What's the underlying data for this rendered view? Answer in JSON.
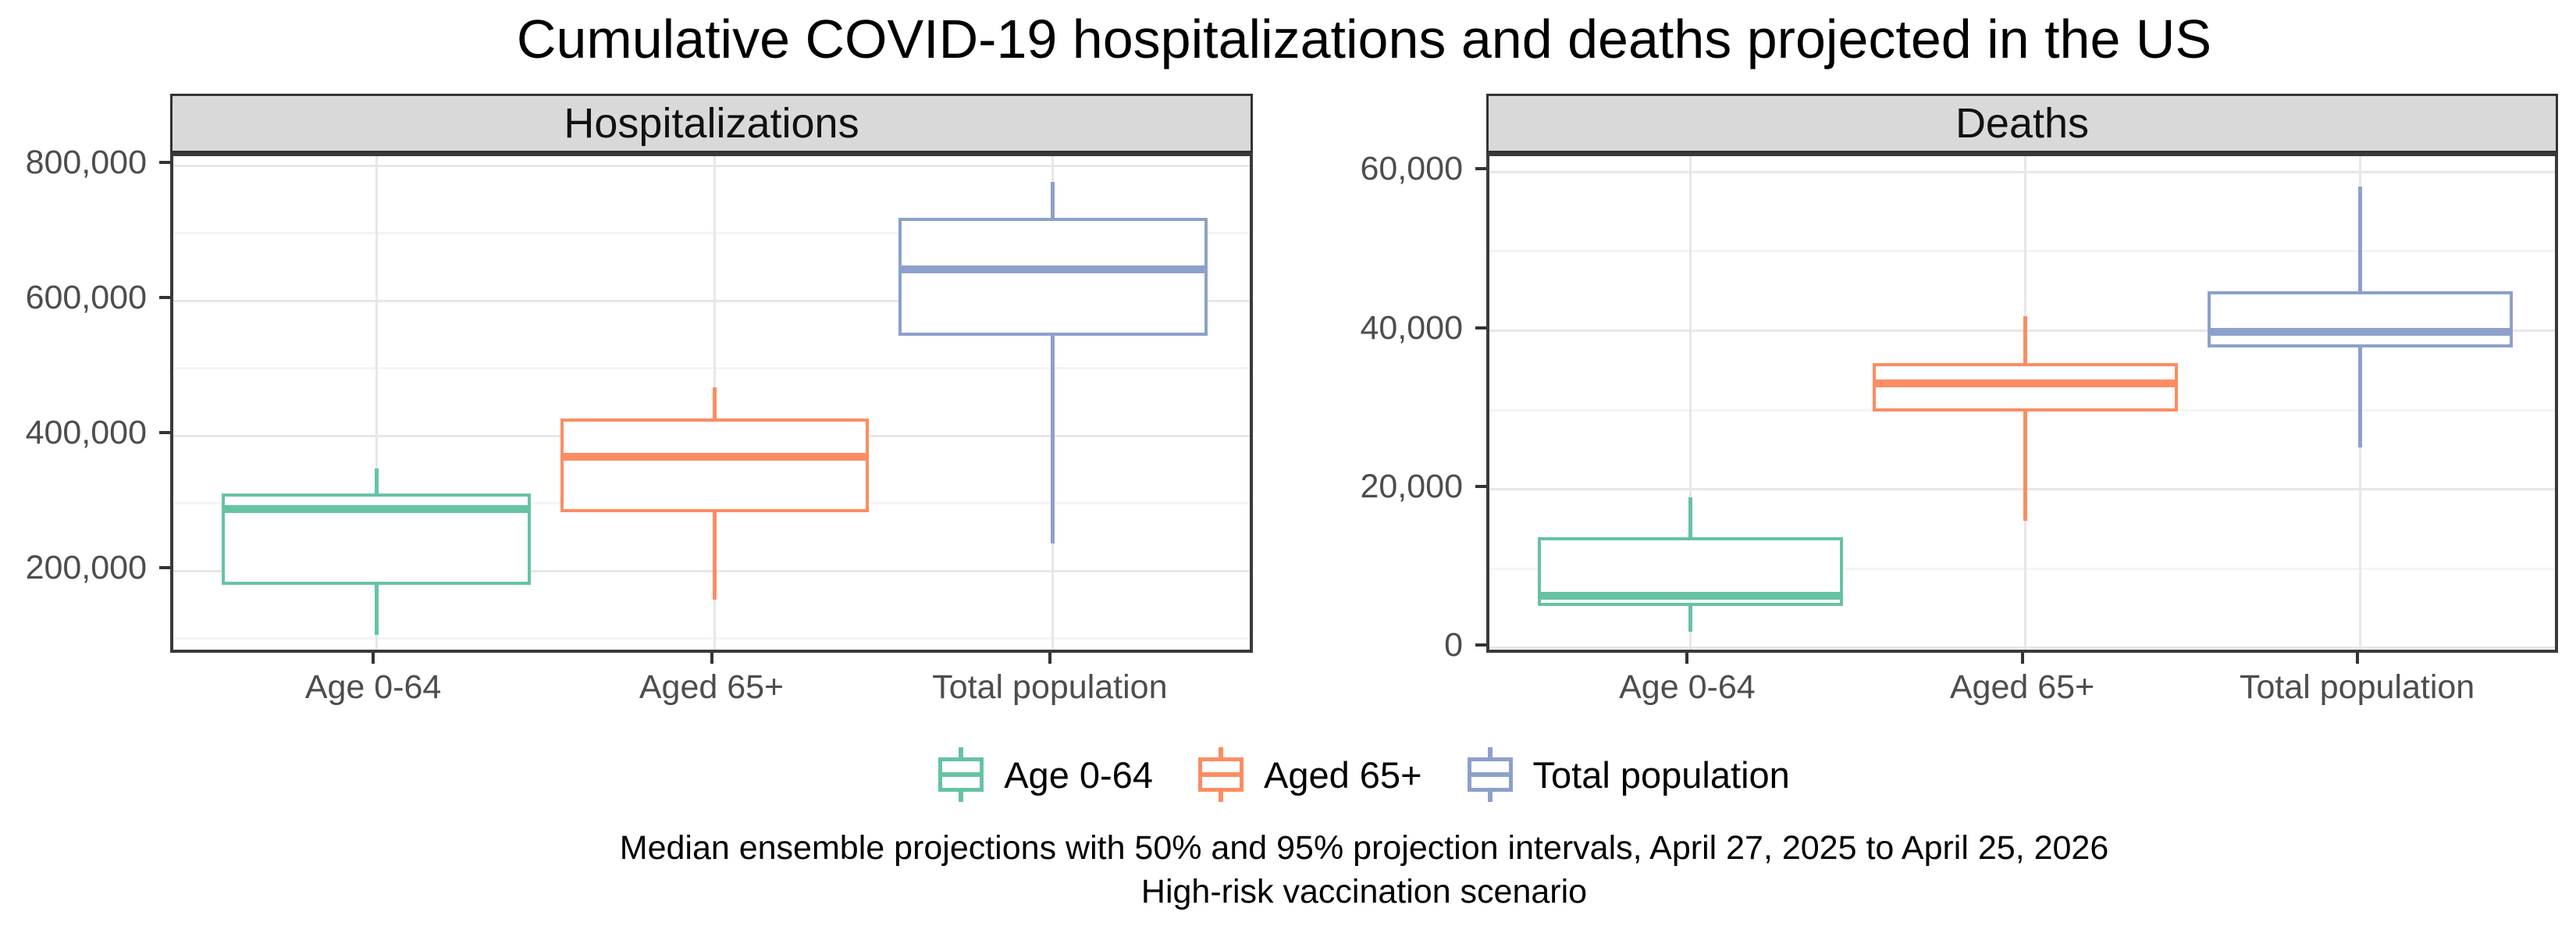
{
  "title": "Cumulative COVID-19 hospitalizations and deaths projected in the US",
  "captions": {
    "line1": "Median ensemble projections with 50% and 95% projection intervals, April 27, 2025 to April 25, 2026",
    "line2": "High-risk vaccination scenario"
  },
  "legend": {
    "items": [
      {
        "label": "Age 0-64",
        "color": "#66C2A5"
      },
      {
        "label": "Aged 65+",
        "color": "#FC8D62"
      },
      {
        "label": "Total population",
        "color": "#8DA0CB"
      }
    ]
  },
  "colors": {
    "strip_bg": "#D9D9D9",
    "panel_border": "#3A3A3A",
    "axis_text": "#4D4D4D",
    "tick_mark": "#333333",
    "grid_major": "#E7E7E7",
    "grid_minor": "#F4F4F4",
    "age_0_64": "#66C2A5",
    "aged_65_plus": "#FC8D62",
    "total_population": "#8DA0CB"
  },
  "chart_data": [
    {
      "type": "box",
      "panel_title": "Hospitalizations",
      "categories": [
        "Age 0-64",
        "Aged 65+",
        "Total population"
      ],
      "ylim": [
        74000,
        814000
      ],
      "grid": true,
      "legend_position": "bottom",
      "yticks": [
        {
          "value": 200000,
          "label": "200,000"
        },
        {
          "value": 400000,
          "label": "400,000"
        },
        {
          "value": 600000,
          "label": "600,000"
        },
        {
          "value": 800000,
          "label": "800,000"
        }
      ],
      "yticks_minor": [
        100000,
        300000,
        500000,
        700000
      ],
      "boxes": [
        {
          "category": "Age 0-64",
          "color": "#66C2A5",
          "lower": 105000,
          "q1": 179000,
          "median": 292000,
          "q3": 315000,
          "upper": 351000
        },
        {
          "category": "Aged 65+",
          "color": "#FC8D62",
          "lower": 157000,
          "q1": 287000,
          "median": 369000,
          "q3": 426000,
          "upper": 472000
        },
        {
          "category": "Total population",
          "color": "#8DA0CB",
          "lower": 240000,
          "q1": 548000,
          "median": 646000,
          "q3": 723000,
          "upper": 776000
        }
      ]
    },
    {
      "type": "box",
      "panel_title": "Deaths",
      "categories": [
        "Age 0-64",
        "Aged 65+",
        "Total population"
      ],
      "ylim": [
        -1000,
        62000
      ],
      "grid": true,
      "legend_position": "bottom",
      "yticks": [
        {
          "value": 0,
          "label": "0"
        },
        {
          "value": 20000,
          "label": "20,000"
        },
        {
          "value": 40000,
          "label": "40,000"
        },
        {
          "value": 60000,
          "label": "60,000"
        }
      ],
      "yticks_minor": [
        10000,
        30000,
        50000
      ],
      "boxes": [
        {
          "category": "Age 0-64",
          "color": "#66C2A5",
          "lower": 2000,
          "q1": 5300,
          "median": 6600,
          "q3": 14000,
          "upper": 19000
        },
        {
          "category": "Aged 65+",
          "color": "#FC8D62",
          "lower": 16000,
          "q1": 29800,
          "median": 33400,
          "q3": 35900,
          "upper": 41800
        },
        {
          "category": "Total population",
          "color": "#8DA0CB",
          "lower": 25300,
          "q1": 37900,
          "median": 39900,
          "q3": 45000,
          "upper": 58200
        }
      ]
    }
  ]
}
